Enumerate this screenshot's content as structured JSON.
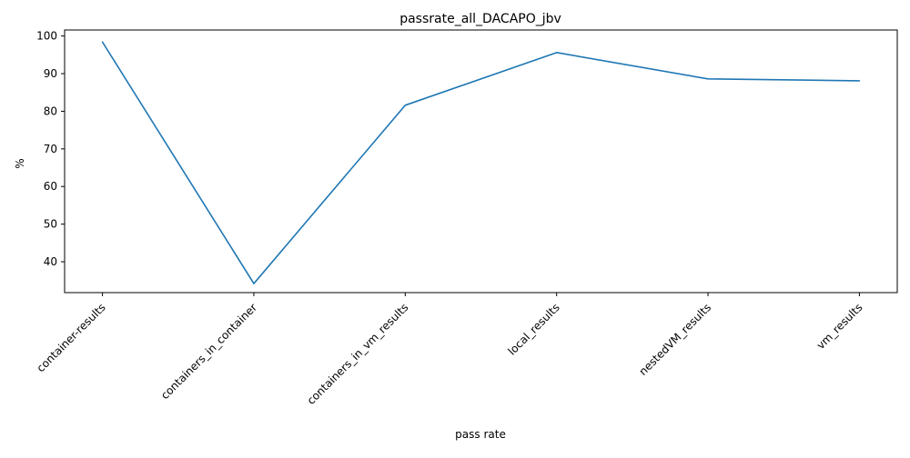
{
  "chart_data": {
    "type": "line",
    "title": "passrate_all_DACAPO_jbv",
    "xlabel": "pass rate",
    "ylabel": "%",
    "categories": [
      "container-results",
      "containers_in_container",
      "containers_in_vm_results",
      "local_results",
      "nestedVM_results",
      "vm_results"
    ],
    "series": [
      {
        "values": [
          98.4,
          34.2,
          81.6,
          95.6,
          88.6,
          88.1
        ],
        "color": "#1f77b4"
      }
    ],
    "ylim": [
      31.8,
      101.6
    ],
    "yticks": [
      40,
      50,
      60,
      70,
      80,
      90,
      100
    ],
    "grid": false,
    "legend": "none"
  }
}
